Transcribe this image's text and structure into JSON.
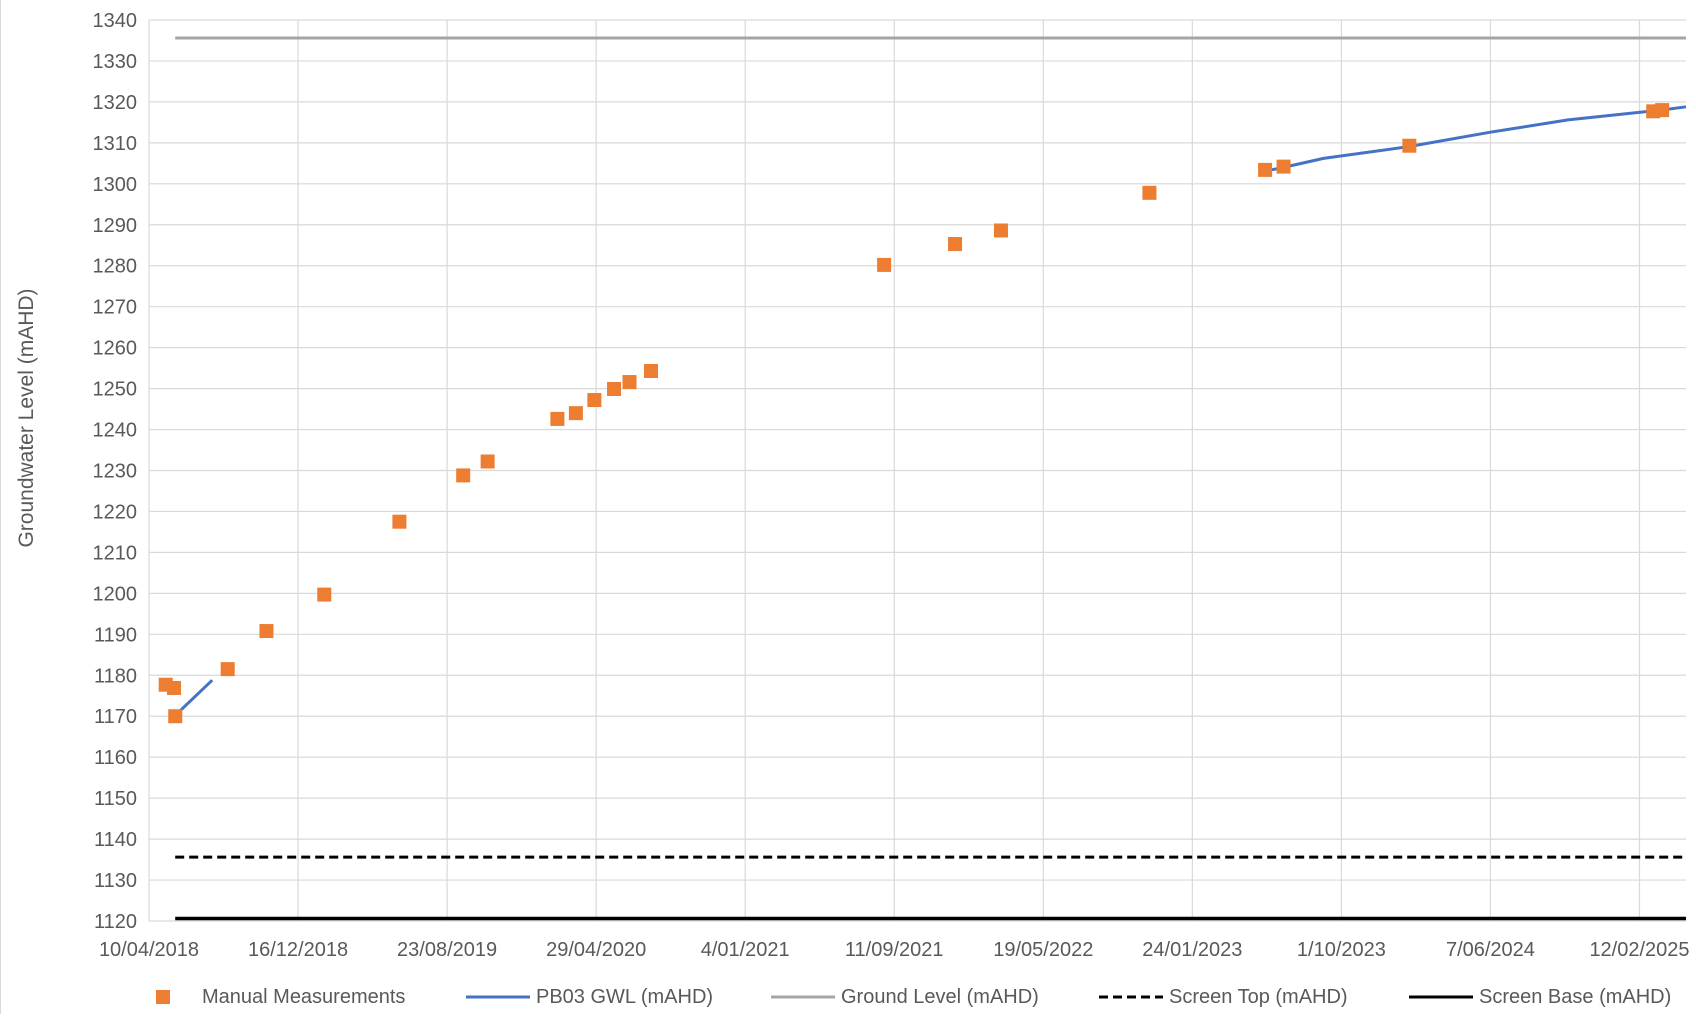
{
  "chart_data": {
    "type": "line",
    "title": "",
    "xlabel": "",
    "ylabel": "Groundwater Level (mAHD)",
    "ylim": [
      1120,
      1340
    ],
    "y_ticks": [
      1120,
      1130,
      1140,
      1150,
      1160,
      1170,
      1180,
      1190,
      1200,
      1210,
      1220,
      1230,
      1240,
      1250,
      1260,
      1270,
      1280,
      1290,
      1300,
      1310,
      1320,
      1330,
      1340
    ],
    "xlim": [
      "2018-04-10",
      "2025-05-01"
    ],
    "x_tick_dates": [
      "2018-04-10",
      "2018-12-16",
      "2019-08-23",
      "2020-04-29",
      "2021-01-04",
      "2021-09-11",
      "2022-05-19",
      "2023-01-24",
      "2023-10-01",
      "2024-06-07",
      "2025-02-12"
    ],
    "x_tick_labels": [
      "10/04/2018",
      "16/12/2018",
      "23/08/2019",
      "29/04/2020",
      "4/01/2021",
      "11/09/2021",
      "19/05/2022",
      "24/01/2023",
      "1/10/2023",
      "7/06/2024",
      "12/02/2025"
    ],
    "grid": true,
    "legend_position": "bottom",
    "colors": {
      "manual": "#ed7d31",
      "gwl": "#4472c4",
      "ground": "#a5a5a5",
      "screen_top": "#000000",
      "screen_base": "#000000",
      "grid": "#d9d9d9",
      "text": "#595959"
    },
    "series": [
      {
        "name": "Manual Measurements",
        "kind": "marker",
        "points": [
          [
            "2018-05-08",
            1177.7
          ],
          [
            "2018-05-22",
            1176.9
          ],
          [
            "2018-05-24",
            1170.0
          ],
          [
            "2018-08-20",
            1181.5
          ],
          [
            "2018-10-24",
            1190.8
          ],
          [
            "2019-01-29",
            1199.7
          ],
          [
            "2019-06-04",
            1217.5
          ],
          [
            "2019-09-19",
            1228.8
          ],
          [
            "2019-10-30",
            1232.2
          ],
          [
            "2020-02-24",
            1242.6
          ],
          [
            "2020-03-26",
            1244.0
          ],
          [
            "2020-04-26",
            1247.2
          ],
          [
            "2020-05-29",
            1249.9
          ],
          [
            "2020-06-24",
            1251.6
          ],
          [
            "2020-07-30",
            1254.3
          ],
          [
            "2021-08-25",
            1280.2
          ],
          [
            "2021-12-22",
            1285.3
          ],
          [
            "2022-03-09",
            1288.6
          ],
          [
            "2022-11-13",
            1297.8
          ],
          [
            "2023-05-26",
            1303.4
          ],
          [
            "2023-06-26",
            1304.2
          ],
          [
            "2024-01-23",
            1309.3
          ],
          [
            "2025-03-07",
            1317.7
          ],
          [
            "2025-03-22",
            1318.0
          ]
        ]
      },
      {
        "name": "PB03 GWL (mAHD)",
        "kind": "line",
        "segments": [
          [
            [
              "2018-05-24",
              1170.2
            ],
            [
              "2018-07-25",
              1178.8
            ]
          ],
          [
            [
              "2023-05-26",
              1303.1
            ],
            [
              "2023-06-26",
              1304.0
            ],
            [
              "2023-09-01",
              1306.2
            ],
            [
              "2024-01-23",
              1309.1
            ],
            [
              "2024-06-07",
              1312.6
            ],
            [
              "2024-10-15",
              1315.6
            ],
            [
              "2025-03-20",
              1318.0
            ],
            [
              "2025-05-01",
              1318.8
            ]
          ]
        ]
      },
      {
        "name": "Ground Level (mAHD)",
        "kind": "line",
        "segments": [
          [
            [
              "2018-05-24",
              1335.6
            ],
            [
              "2025-05-01",
              1335.6
            ]
          ]
        ]
      },
      {
        "name": "Screen Top (mAHD)",
        "kind": "dashed",
        "segments": [
          [
            [
              "2018-05-24",
              1135.6
            ],
            [
              "2025-05-01",
              1135.6
            ]
          ]
        ]
      },
      {
        "name": "Screen Base (mAHD)",
        "kind": "line",
        "segments": [
          [
            [
              "2018-05-24",
              1120.6
            ],
            [
              "2025-05-01",
              1120.6
            ]
          ]
        ]
      }
    ]
  }
}
